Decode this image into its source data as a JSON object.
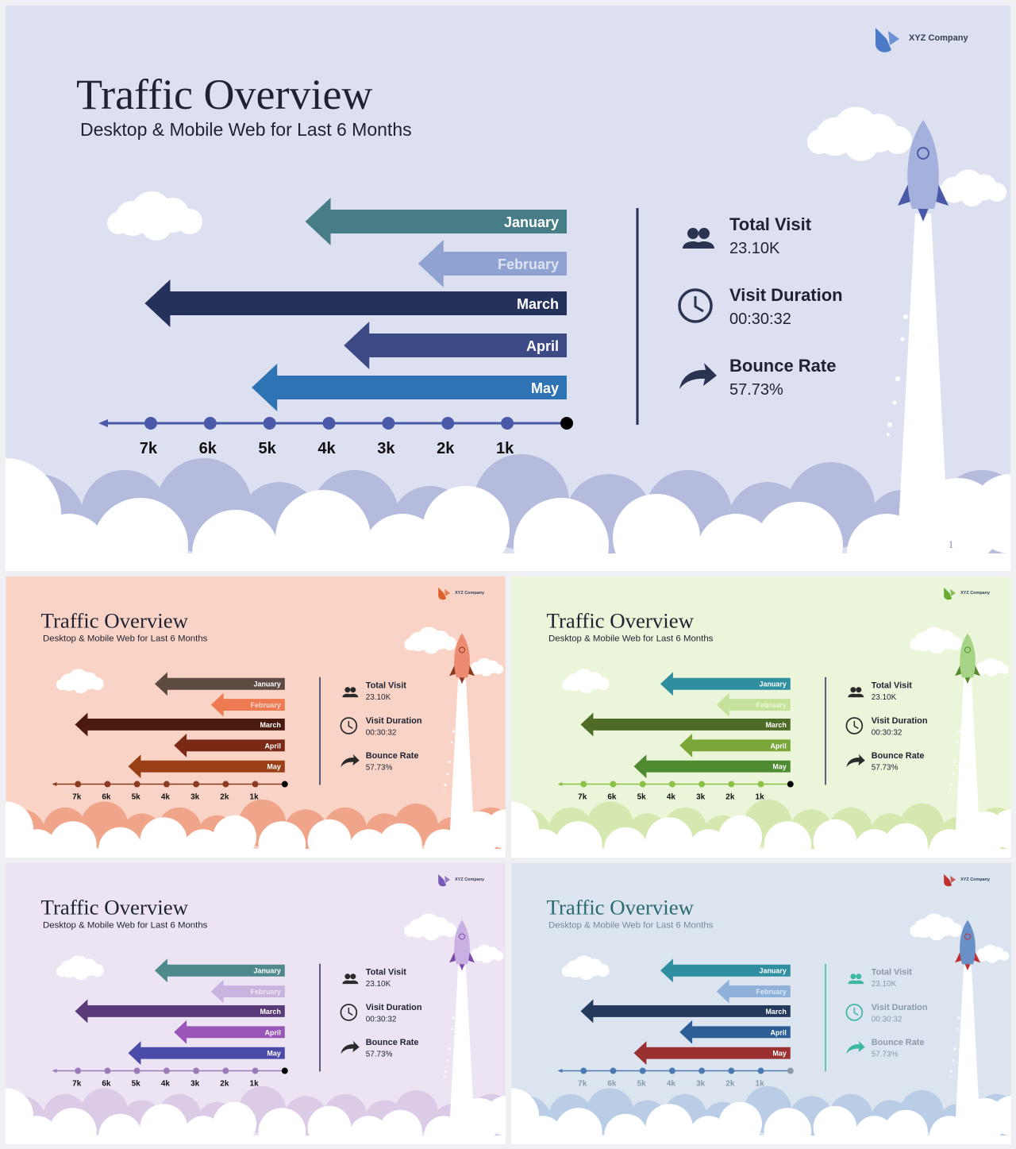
{
  "chart_data": [
    {
      "type": "arrow-bar",
      "title": "Traffic Overview",
      "subtitle": "Desktop & Mobile Web for Last 6 Months",
      "logo": "XYZ Company",
      "categories": [
        "January",
        "February",
        "March",
        "April",
        "May"
      ],
      "values": [
        4400,
        2500,
        7100,
        3750,
        5300
      ],
      "colors": [
        "#467d86",
        "#8fa2d2",
        "#24315a",
        "#3b4a85",
        "#2e73b3"
      ],
      "xlim": [
        0,
        7800
      ],
      "xticks": [
        {
          "value": 7000,
          "label": "7k"
        },
        {
          "value": 6000,
          "label": "6k"
        },
        {
          "value": 5000,
          "label": "5k"
        },
        {
          "value": 4000,
          "label": "4k"
        },
        {
          "value": 3000,
          "label": "3k"
        },
        {
          "value": 2000,
          "label": "2k"
        },
        {
          "value": 1000,
          "label": "1k"
        }
      ],
      "stats": [
        {
          "label": "Total Visit",
          "value": "23.10K"
        },
        {
          "label": "Visit Duration",
          "value": "00:30:32"
        },
        {
          "label": "Bounce Rate",
          "value": "57.73%"
        }
      ],
      "page": "1",
      "theme": {
        "bg": "#dce0f0",
        "cloud": "#b4bbdc",
        "axis": "#4a5aa8",
        "title": "#1f2233",
        "subtitle": "#1f2233",
        "text": "#1f2233",
        "icon": "#2a3350",
        "rocket": "#a4b1dc",
        "fin": "#4a5aa8",
        "logo": "#4a7ac8"
      }
    },
    {
      "type": "arrow-bar",
      "title": "Traffic Overview",
      "subtitle": "Desktop & Mobile Web for Last 6 Months",
      "logo": "XYZ Company",
      "categories": [
        "January",
        "February",
        "March",
        "April",
        "May"
      ],
      "values": [
        4400,
        2500,
        7100,
        3750,
        5300
      ],
      "colors": [
        "#5d4a40",
        "#ee7a52",
        "#4a1a0e",
        "#7a2a14",
        "#9a3e16"
      ],
      "xlim": [
        0,
        7800
      ],
      "xticks": [
        {
          "value": 7000,
          "label": "7k"
        },
        {
          "value": 6000,
          "label": "6k"
        },
        {
          "value": 5000,
          "label": "5k"
        },
        {
          "value": 4000,
          "label": "4k"
        },
        {
          "value": 3000,
          "label": "3k"
        },
        {
          "value": 2000,
          "label": "2k"
        },
        {
          "value": 1000,
          "label": "1k"
        }
      ],
      "stats": [
        {
          "label": "Total Visit",
          "value": "23.10K"
        },
        {
          "label": "Visit Duration",
          "value": "00:30:32"
        },
        {
          "label": "Bounce Rate",
          "value": "57.73%"
        }
      ],
      "theme": {
        "bg": "#f9d4c6",
        "cloud": "#f0a48a",
        "axis": "#8b3a22",
        "title": "#1f2233",
        "subtitle": "#1f2233",
        "text": "#1f2233",
        "icon": "#2a2a2a",
        "rocket": "#ec8a72",
        "fin": "#8b3a22",
        "logo": "#e0602a"
      }
    },
    {
      "type": "arrow-bar",
      "title": "Traffic Overview",
      "subtitle": "Desktop & Mobile Web for Last 6 Months",
      "logo": "XYZ Company",
      "categories": [
        "January",
        "February",
        "March",
        "April",
        "May"
      ],
      "values": [
        4400,
        2500,
        7100,
        3750,
        5300
      ],
      "colors": [
        "#2f8ea0",
        "#c6e29a",
        "#4f6c26",
        "#7aa63a",
        "#4d8a30"
      ],
      "xlim": [
        0,
        7800
      ],
      "xticks": [
        {
          "value": 7000,
          "label": "7k"
        },
        {
          "value": 6000,
          "label": "6k"
        },
        {
          "value": 5000,
          "label": "5k"
        },
        {
          "value": 4000,
          "label": "4k"
        },
        {
          "value": 3000,
          "label": "3k"
        },
        {
          "value": 2000,
          "label": "2k"
        },
        {
          "value": 1000,
          "label": "1k"
        }
      ],
      "stats": [
        {
          "label": "Total Visit",
          "value": "23.10K"
        },
        {
          "label": "Visit Duration",
          "value": "00:30:32"
        },
        {
          "label": "Bounce Rate",
          "value": "57.73%"
        }
      ],
      "theme": {
        "bg": "#eaf5d9",
        "cloud": "#d5e8b0",
        "axis": "#8cc046",
        "title": "#1f2233",
        "subtitle": "#1f2233",
        "text": "#1f2233",
        "icon": "#2a2a2a",
        "rocket": "#a6d487",
        "fin": "#5a8a30",
        "logo": "#6aaa30"
      }
    },
    {
      "type": "arrow-bar",
      "title": "Traffic Overview",
      "subtitle": "Desktop & Mobile Web for Last 6 Months",
      "logo": "XYZ Company",
      "categories": [
        "January",
        "February",
        "March",
        "April",
        "May"
      ],
      "values": [
        4400,
        2500,
        7100,
        3750,
        5300
      ],
      "colors": [
        "#4e8a8c",
        "#c9b4e0",
        "#5a3a78",
        "#9a55b8",
        "#4a4aa8"
      ],
      "xlim": [
        0,
        7800
      ],
      "xticks": [
        {
          "value": 7000,
          "label": "7k"
        },
        {
          "value": 6000,
          "label": "6k"
        },
        {
          "value": 5000,
          "label": "5k"
        },
        {
          "value": 4000,
          "label": "4k"
        },
        {
          "value": 3000,
          "label": "3k"
        },
        {
          "value": 2000,
          "label": "2k"
        },
        {
          "value": 1000,
          "label": "1k"
        }
      ],
      "stats": [
        {
          "label": "Total Visit",
          "value": "23.10K"
        },
        {
          "label": "Visit Duration",
          "value": "00:30:32"
        },
        {
          "label": "Bounce Rate",
          "value": "57.73%"
        }
      ],
      "theme": {
        "bg": "#ece4f2",
        "cloud": "#dccbe6",
        "axis": "#9a7bb8",
        "title": "#1f2233",
        "subtitle": "#1f2233",
        "text": "#1f2233",
        "icon": "#2a2a2a",
        "rocket": "#c9b0e2",
        "fin": "#7a4aa8",
        "logo": "#7a5ab8"
      }
    },
    {
      "type": "arrow-bar",
      "title": "Traffic Overview",
      "subtitle": "Desktop & Mobile Web for Last 6 Months",
      "logo": "XYZ Company",
      "categories": [
        "January",
        "February",
        "March",
        "April",
        "May"
      ],
      "values": [
        4400,
        2500,
        7100,
        3750,
        5300
      ],
      "colors": [
        "#2f8ea0",
        "#8fb0d8",
        "#243a5c",
        "#2e5e96",
        "#9a3030"
      ],
      "xlim": [
        0,
        7800
      ],
      "xticks": [
        {
          "value": 7000,
          "label": "7k"
        },
        {
          "value": 6000,
          "label": "6k"
        },
        {
          "value": 5000,
          "label": "5k"
        },
        {
          "value": 4000,
          "label": "4k"
        },
        {
          "value": 3000,
          "label": "3k"
        },
        {
          "value": 2000,
          "label": "2k"
        },
        {
          "value": 1000,
          "label": "1k"
        }
      ],
      "stats": [
        {
          "label": "Total Visit",
          "value": "23.10K"
        },
        {
          "label": "Visit Duration",
          "value": "00:30:32"
        },
        {
          "label": "Bounce Rate",
          "value": "57.73%"
        }
      ],
      "theme": {
        "bg": "#dce4f0",
        "cloud": "#b9cde6",
        "axis": "#4a7ab0",
        "title": "#2a6a70",
        "subtitle": "#7a8a9a",
        "text": "#8a9aa8",
        "icon": "#3cb8a0",
        "rocket": "#6a90c8",
        "fin": "#c03030",
        "logo": "#c03030"
      }
    }
  ]
}
